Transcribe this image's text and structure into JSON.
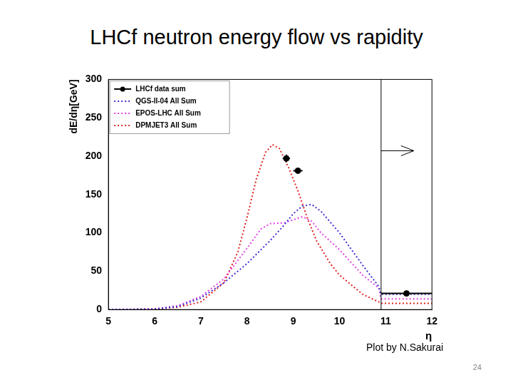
{
  "title": "LHCf neutron energy flow vs rapidity",
  "footer": "Plot by N.Sakurai",
  "page": "24",
  "chart_data": {
    "type": "line",
    "x_label": "η",
    "y_label": "dE/dη[GeV]",
    "xlim": [
      5,
      12
    ],
    "xticks": [
      5,
      6,
      7,
      8,
      9,
      10,
      11,
      12
    ],
    "ylim": [
      0,
      300
    ],
    "yticks": [
      0,
      50,
      100,
      150,
      200,
      250,
      300
    ],
    "grid": false,
    "legend": "upper left",
    "vline": 10.9,
    "series": [
      {
        "name": "LHCf data sum",
        "color": "#000000",
        "type": "scatter",
        "marker": "o",
        "x": [
          8.85,
          9.1,
          11.45
        ],
        "values": [
          197,
          181,
          21
        ],
        "x_err": [
          0.08,
          0.1,
          0.55
        ],
        "y_err": [
          5,
          3,
          1
        ]
      },
      {
        "name": "QGS-II-04 All Sum",
        "color": "#3b2fd6",
        "line_style": "dotted",
        "x": [
          5,
          6,
          6.5,
          7,
          7.5,
          8,
          8.5,
          8.8,
          9,
          9.2,
          9.4,
          9.6,
          10,
          10.5,
          10.85,
          10.9,
          12
        ],
        "values": [
          0,
          0.5,
          4,
          15,
          35,
          60,
          90,
          110,
          125,
          135,
          137,
          128,
          100,
          58,
          30,
          20,
          20
        ]
      },
      {
        "name": "EPOS-LHC All Sum",
        "color": "#e040e0",
        "line_style": "dotted",
        "x": [
          5,
          6,
          6.5,
          7,
          7.5,
          8,
          8.3,
          8.5,
          8.8,
          9,
          9.2,
          9.4,
          9.6,
          10,
          10.5,
          10.85,
          10.9,
          12
        ],
        "values": [
          0,
          1,
          5,
          17,
          40,
          80,
          105,
          112,
          113,
          117,
          121,
          115,
          100,
          78,
          45,
          28,
          14,
          14
        ]
      },
      {
        "name": "DPMJET3 All Sum",
        "color": "#e02020",
        "line_style": "dotted",
        "x": [
          5,
          6,
          6.5,
          7,
          7.5,
          7.8,
          8,
          8.2,
          8.4,
          8.55,
          8.7,
          8.9,
          9.1,
          9.3,
          9.5,
          9.8,
          10,
          10.5,
          10.85,
          10.9,
          12
        ],
        "values": [
          0,
          0.5,
          3,
          10,
          35,
          75,
          120,
          170,
          205,
          215,
          210,
          185,
          155,
          120,
          90,
          60,
          45,
          20,
          10,
          8,
          8
        ]
      }
    ]
  }
}
